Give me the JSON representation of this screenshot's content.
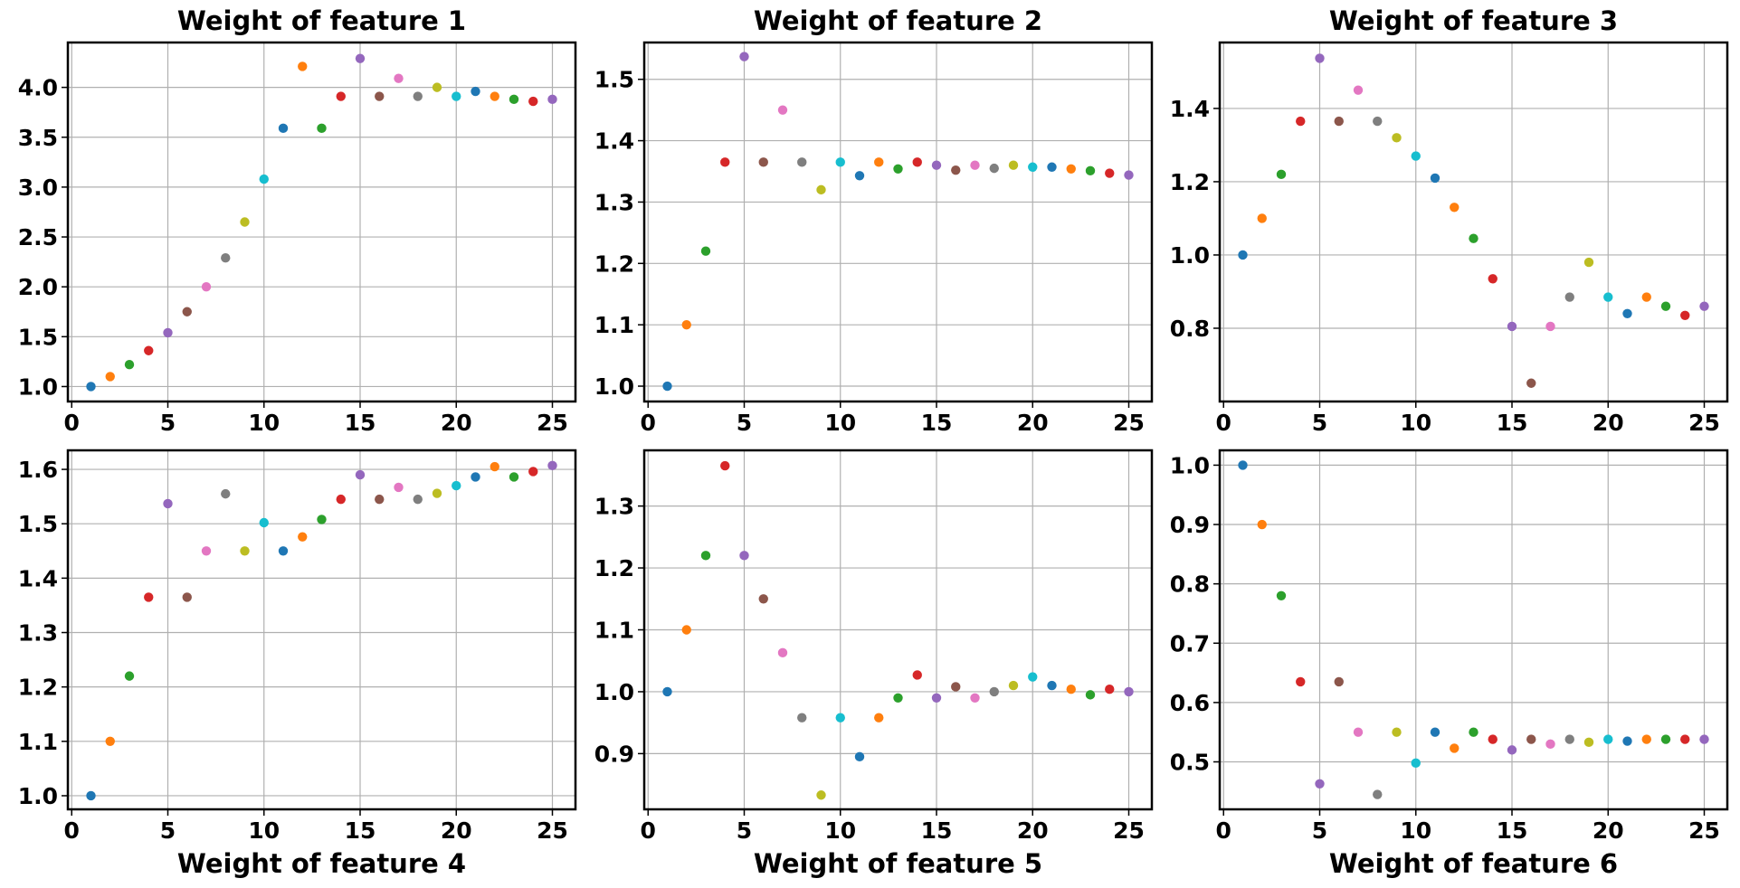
{
  "colors": [
    "#1f77b4",
    "#ff7f0e",
    "#2ca02c",
    "#d62728",
    "#9467bd",
    "#8c564b",
    "#e377c2",
    "#7f7f7f",
    "#bcbd22",
    "#17becf"
  ],
  "chart_data": [
    {
      "type": "scatter",
      "title": "Weight of feature 1",
      "xlabel": "",
      "x": [
        1,
        2,
        3,
        4,
        5,
        6,
        7,
        8,
        9,
        10,
        11,
        12,
        13,
        14,
        15,
        16,
        17,
        18,
        19,
        20,
        21,
        22,
        23,
        24,
        25
      ],
      "y": [
        1.0,
        1.1,
        1.22,
        1.36,
        1.54,
        1.75,
        2.0,
        2.29,
        2.65,
        3.08,
        3.59,
        4.21,
        3.59,
        3.91,
        4.29,
        3.91,
        4.09,
        3.91,
        4.0,
        3.91,
        3.96,
        3.91,
        3.88,
        3.86,
        3.88
      ],
      "xlim": [
        -0.2,
        26.2
      ],
      "ylim": [
        0.85,
        4.45
      ],
      "xticks": [
        "0",
        "5",
        "10",
        "15",
        "20",
        "25"
      ],
      "yticks": [
        "1.0",
        "1.5",
        "2.0",
        "2.5",
        "3.0",
        "3.5",
        "4.0"
      ],
      "grid": true
    },
    {
      "type": "scatter",
      "title": "Weight of feature 2",
      "xlabel": "",
      "x": [
        1,
        2,
        3,
        4,
        5,
        6,
        7,
        8,
        9,
        10,
        11,
        12,
        13,
        14,
        15,
        16,
        17,
        18,
        19,
        20,
        21,
        22,
        23,
        24,
        25
      ],
      "y": [
        1.0,
        1.1,
        1.22,
        1.365,
        1.537,
        1.365,
        1.45,
        1.365,
        1.32,
        1.365,
        1.343,
        1.365,
        1.354,
        1.365,
        1.36,
        1.352,
        1.36,
        1.355,
        1.36,
        1.357,
        1.357,
        1.354,
        1.351,
        1.347,
        1.344
      ],
      "xlim": [
        -0.2,
        26.2
      ],
      "ylim": [
        0.975,
        1.56
      ],
      "xticks": [
        "0",
        "5",
        "10",
        "15",
        "20",
        "25"
      ],
      "yticks": [
        "1.0",
        "1.1",
        "1.2",
        "1.3",
        "1.4",
        "1.5"
      ],
      "grid": true
    },
    {
      "type": "scatter",
      "title": "Weight of feature 3",
      "xlabel": "",
      "x": [
        1,
        2,
        3,
        4,
        5,
        6,
        7,
        8,
        9,
        10,
        11,
        12,
        13,
        14,
        15,
        16,
        17,
        18,
        19,
        20,
        21,
        22,
        23,
        24,
        25
      ],
      "y": [
        1.0,
        1.1,
        1.22,
        1.365,
        1.537,
        1.365,
        1.45,
        1.365,
        1.32,
        1.27,
        1.21,
        1.13,
        1.045,
        0.935,
        0.805,
        0.65,
        0.805,
        0.885,
        0.98,
        0.885,
        0.84,
        0.885,
        0.86,
        0.835,
        0.86
      ],
      "xlim": [
        -0.2,
        26.2
      ],
      "ylim": [
        0.6,
        1.58
      ],
      "xticks": [
        "0",
        "5",
        "10",
        "15",
        "20",
        "25"
      ],
      "yticks": [
        "0.8",
        "1.0",
        "1.2",
        "1.4"
      ],
      "grid": true
    },
    {
      "type": "scatter",
      "title": "",
      "xlabel": "Weight of feature 4",
      "x": [
        1,
        2,
        3,
        4,
        5,
        6,
        7,
        8,
        9,
        10,
        11,
        12,
        13,
        14,
        15,
        16,
        17,
        18,
        19,
        20,
        21,
        22,
        23,
        24,
        25
      ],
      "y": [
        1.0,
        1.1,
        1.22,
        1.365,
        1.537,
        1.365,
        1.45,
        1.555,
        1.45,
        1.502,
        1.45,
        1.476,
        1.508,
        1.545,
        1.59,
        1.545,
        1.567,
        1.545,
        1.556,
        1.57,
        1.586,
        1.605,
        1.586,
        1.596,
        1.607
      ],
      "xlim": [
        -0.2,
        26.2
      ],
      "ylim": [
        0.975,
        1.635
      ],
      "xticks": [
        "0",
        "5",
        "10",
        "15",
        "20",
        "25"
      ],
      "yticks": [
        "1.0",
        "1.1",
        "1.2",
        "1.3",
        "1.4",
        "1.5",
        "1.6"
      ],
      "grid": true
    },
    {
      "type": "scatter",
      "title": "",
      "xlabel": "Weight of feature 5",
      "x": [
        1,
        2,
        3,
        4,
        5,
        6,
        7,
        8,
        9,
        10,
        11,
        12,
        13,
        14,
        15,
        16,
        17,
        18,
        19,
        20,
        21,
        22,
        23,
        24,
        25
      ],
      "y": [
        1.0,
        1.1,
        1.22,
        1.365,
        1.22,
        1.15,
        1.063,
        0.958,
        0.833,
        0.958,
        0.895,
        0.958,
        0.99,
        1.027,
        0.99,
        1.008,
        0.99,
        1.0,
        1.01,
        1.024,
        1.01,
        1.004,
        0.995,
        1.004,
        1.0
      ],
      "xlim": [
        -0.2,
        26.2
      ],
      "ylim": [
        0.81,
        1.39
      ],
      "xticks": [
        "0",
        "5",
        "10",
        "15",
        "20",
        "25"
      ],
      "yticks": [
        "0.9",
        "1.0",
        "1.1",
        "1.2",
        "1.3"
      ],
      "grid": true
    },
    {
      "type": "scatter",
      "title": "",
      "xlabel": "Weight of feature 6",
      "x": [
        1,
        2,
        3,
        4,
        5,
        6,
        7,
        8,
        9,
        10,
        11,
        12,
        13,
        14,
        15,
        16,
        17,
        18,
        19,
        20,
        21,
        22,
        23,
        24,
        25
      ],
      "y": [
        1.0,
        0.9,
        0.78,
        0.635,
        0.463,
        0.635,
        0.55,
        0.445,
        0.55,
        0.498,
        0.55,
        0.523,
        0.55,
        0.538,
        0.52,
        0.538,
        0.53,
        0.538,
        0.533,
        0.538,
        0.535,
        0.538,
        0.538,
        0.538,
        0.538
      ],
      "xlim": [
        -0.2,
        26.2
      ],
      "ylim": [
        0.42,
        1.025
      ],
      "xticks": [
        "0",
        "5",
        "10",
        "15",
        "20",
        "25"
      ],
      "yticks": [
        "0.5",
        "0.6",
        "0.7",
        "0.8",
        "0.9",
        "1.0"
      ],
      "grid": true
    }
  ]
}
